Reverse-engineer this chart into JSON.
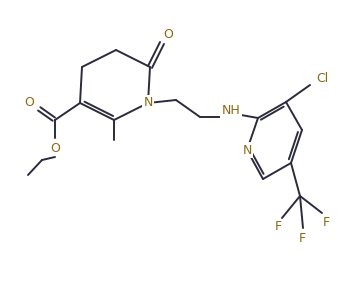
{
  "bg_color": "#ffffff",
  "bond_color": "#2b2b3b",
  "atom_colors": {
    "O": "#8B6914",
    "N": "#8B6914",
    "F": "#8B6914",
    "Cl": "#8B6914",
    "C": "#2b2b3b"
  },
  "figsize": [
    3.49,
    2.93
  ],
  "dpi": 100,
  "lw": 1.4
}
